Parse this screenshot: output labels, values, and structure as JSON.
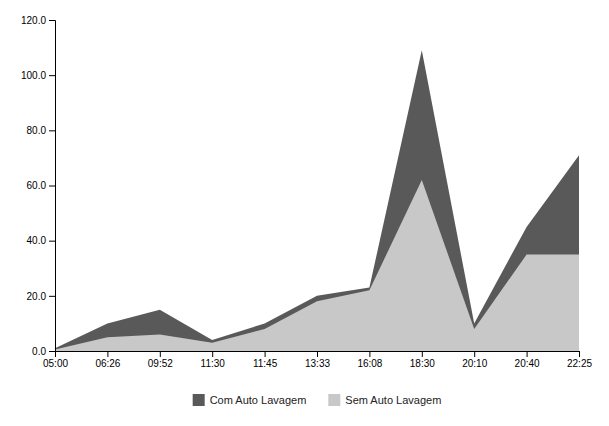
{
  "chart_data": {
    "type": "area",
    "categories": [
      "05:00",
      "06:26",
      "09:52",
      "11:30",
      "11:45",
      "13:33",
      "16:08",
      "18:30",
      "20:10",
      "20:40",
      "22:25"
    ],
    "series": [
      {
        "name": "Com Auto Lavagem",
        "color": "#595959",
        "values": [
          1.0,
          10.0,
          15.0,
          4.0,
          10.0,
          20.0,
          23.0,
          109.0,
          10.0,
          45.0,
          71.0
        ]
      },
      {
        "name": "Sem Auto Lavagem",
        "color": "#c8c8c8",
        "values": [
          0.5,
          5.0,
          6.0,
          3.0,
          8.0,
          18.0,
          22.0,
          62.0,
          8.0,
          35.0,
          35.0
        ]
      }
    ],
    "ylim": [
      0,
      120
    ],
    "yticks": [
      {
        "value": 0,
        "label": "0.0"
      },
      {
        "value": 20,
        "label": "20.0"
      },
      {
        "value": 40,
        "label": "40.0"
      },
      {
        "value": 60,
        "label": "60.0"
      },
      {
        "value": 80,
        "label": "80.0"
      },
      {
        "value": 100,
        "label": "100.0"
      },
      {
        "value": 120,
        "label": "120.0"
      }
    ],
    "stacked": false,
    "grid": false,
    "legend": "bottom"
  }
}
